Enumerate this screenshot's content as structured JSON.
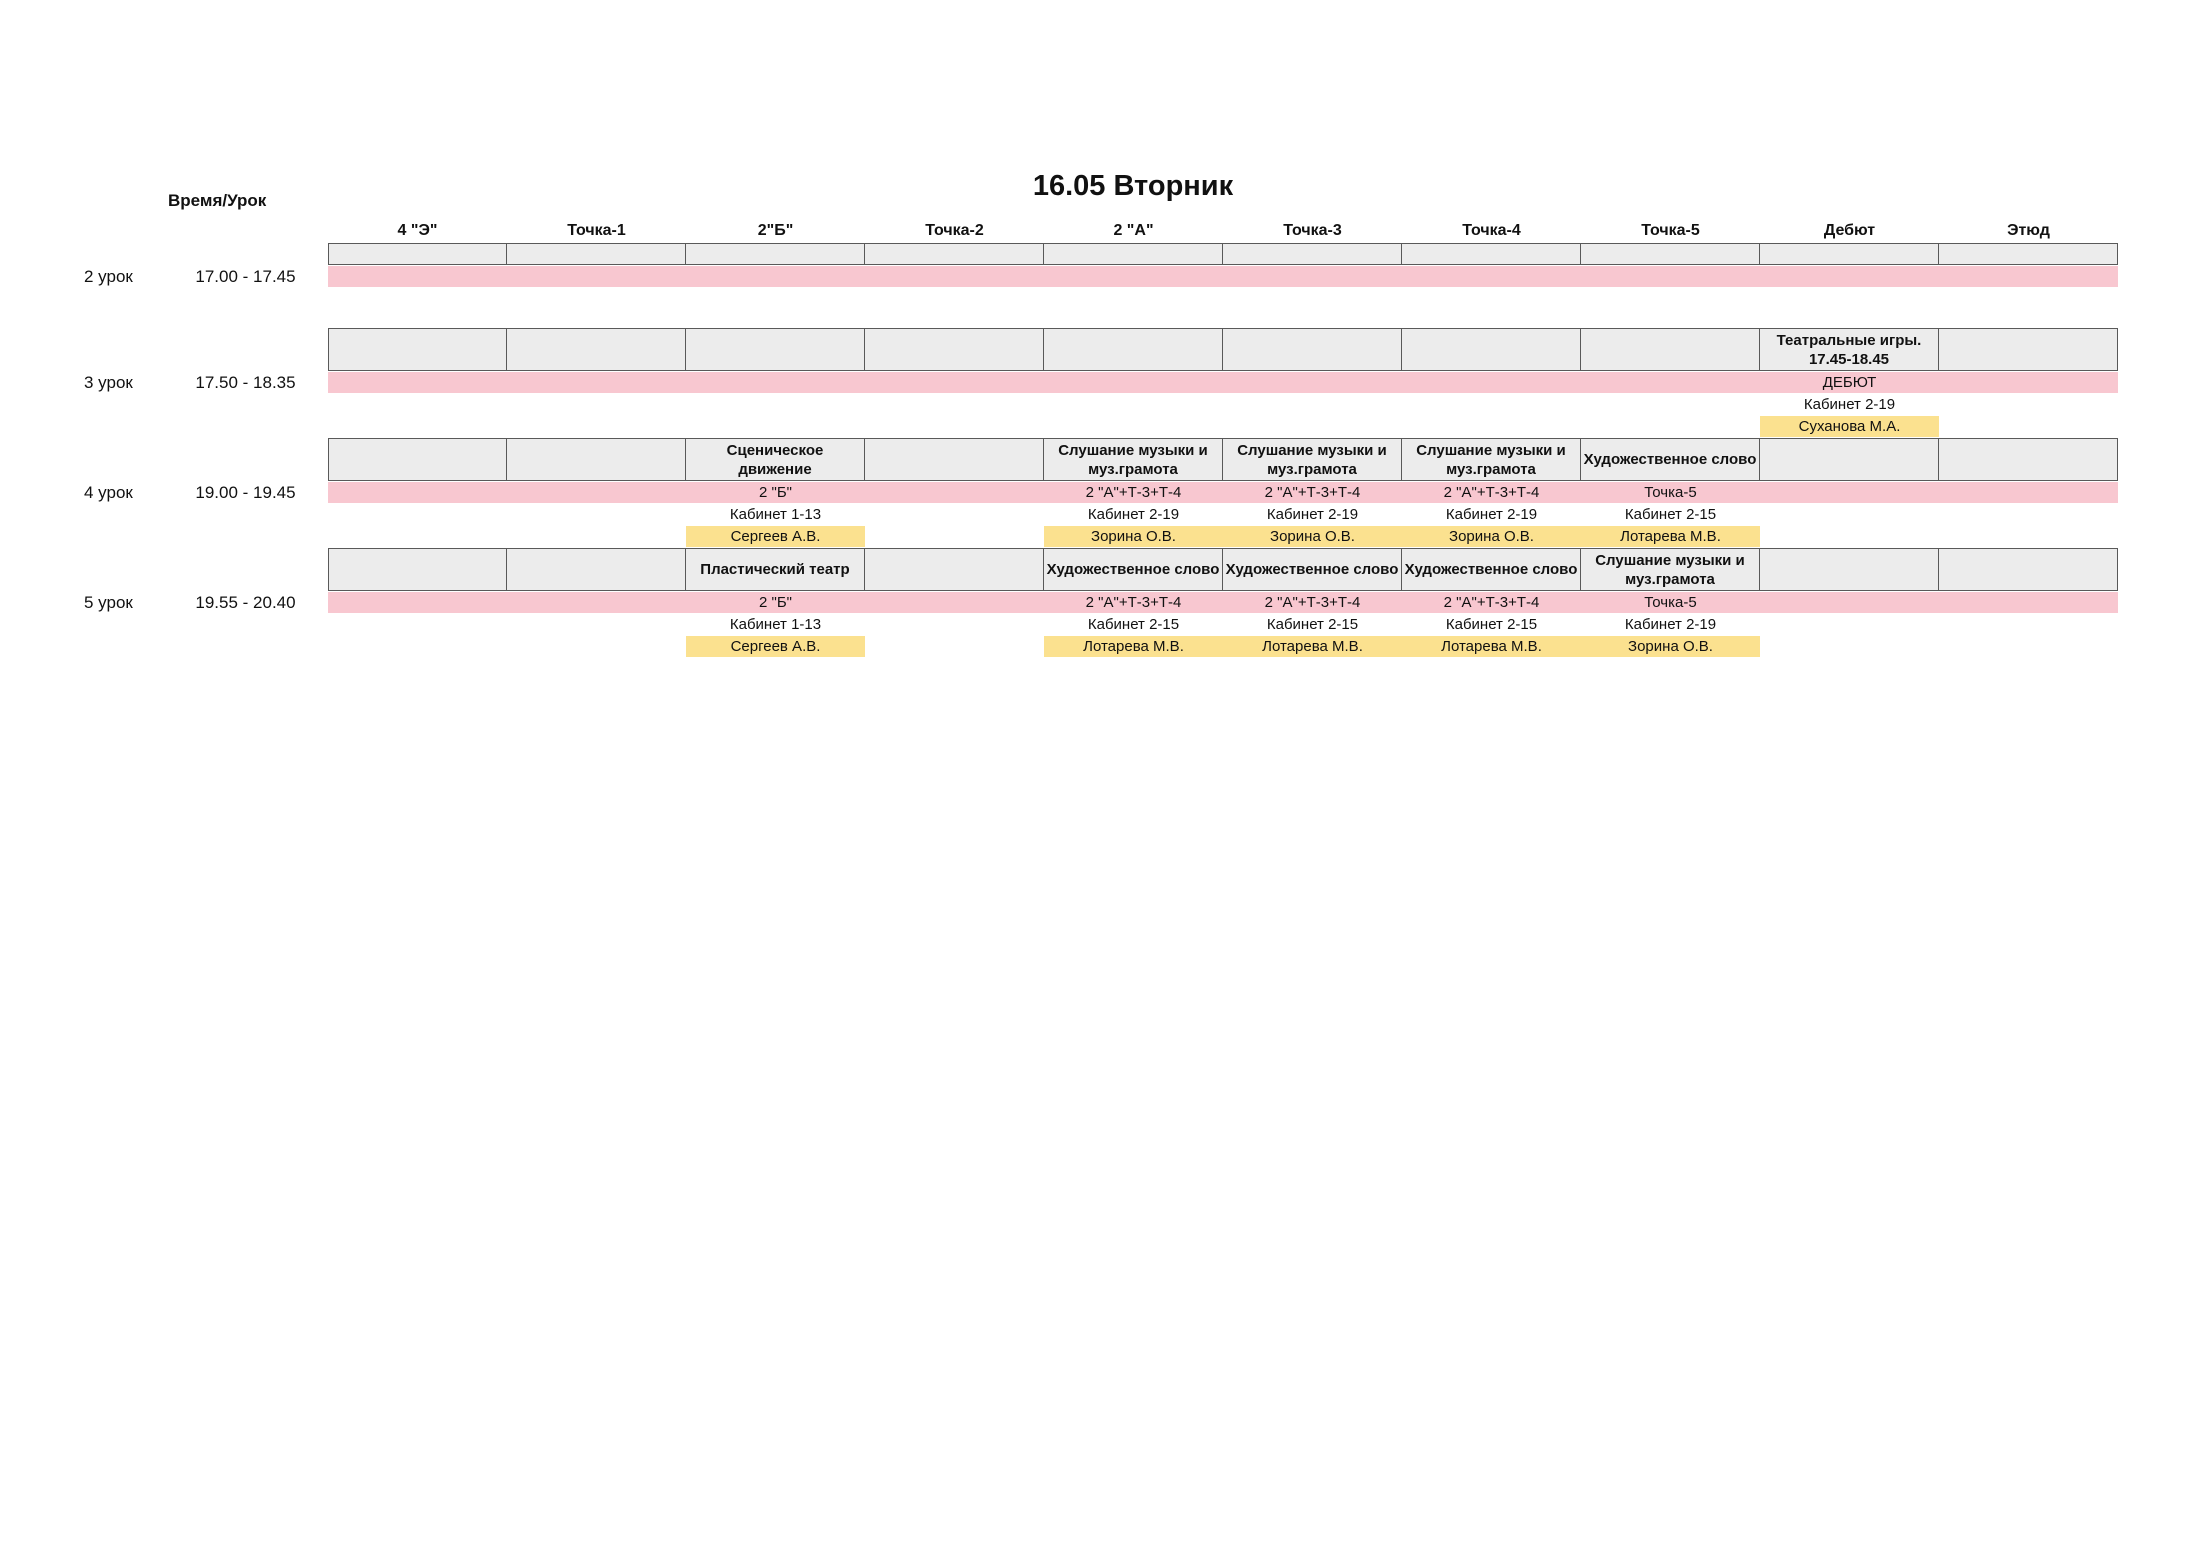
{
  "page": {
    "title": "16.05 Вторник",
    "corner_label": "Время/Урок"
  },
  "columns": [
    "4 \"Э\"",
    "Точка-1",
    "2\"Б\"",
    "Точка-2",
    "2 \"А\"",
    "Точка-3",
    "Точка-4",
    "Точка-5",
    "Дебют",
    "Этюд"
  ],
  "colors": {
    "lesson_band": "#f8c7d0",
    "teacher_band": "#fbe18f",
    "header_cell": "#ececec",
    "cell_border": "#595959"
  },
  "blocks": [
    {
      "lesson": "2 урок",
      "time": "17.00 - 17.45",
      "subjects": [
        "",
        "",
        "",
        "",
        "",
        "",
        "",
        "",
        "",
        ""
      ],
      "groups": [
        "",
        "",
        "",
        "",
        "",
        "",
        "",
        "",
        "",
        ""
      ],
      "rooms": [
        "",
        "",
        "",
        "",
        "",
        "",
        "",
        "",
        "",
        ""
      ],
      "teachers": [
        "",
        "",
        "",
        "",
        "",
        "",
        "",
        "",
        "",
        ""
      ]
    },
    {
      "lesson": "3 урок",
      "time": "17.50 - 18.35",
      "subjects": [
        "",
        "",
        "",
        "",
        "",
        "",
        "",
        "",
        "Театральные игры.\n17.45-18.45",
        ""
      ],
      "groups": [
        "",
        "",
        "",
        "",
        "",
        "",
        "",
        "",
        "ДЕБЮТ",
        ""
      ],
      "rooms": [
        "",
        "",
        "",
        "",
        "",
        "",
        "",
        "",
        "Кабинет 2-19",
        ""
      ],
      "teachers": [
        "",
        "",
        "",
        "",
        "",
        "",
        "",
        "",
        "Суханова М.А.",
        ""
      ]
    },
    {
      "lesson": "4 урок",
      "time": "19.00 - 19.45",
      "subjects": [
        "",
        "",
        "Сценическое\nдвижение",
        "",
        "Слушание музыки и\nмуз.грамота",
        "Слушание музыки и\nмуз.грамота",
        "Слушание музыки и\nмуз.грамота",
        "Художественное слово",
        "",
        ""
      ],
      "groups": [
        "",
        "",
        "2 \"Б\"",
        "",
        "2 \"А\"+Т-3+Т-4",
        "2 \"А\"+Т-3+Т-4",
        "2 \"А\"+Т-3+Т-4",
        "Точка-5",
        "",
        ""
      ],
      "rooms": [
        "",
        "",
        "Кабинет 1-13",
        "",
        "Кабинет 2-19",
        "Кабинет 2-19",
        "Кабинет 2-19",
        "Кабинет 2-15",
        "",
        ""
      ],
      "teachers": [
        "",
        "",
        "Сергеев А.В.",
        "",
        "Зорина О.В.",
        "Зорина О.В.",
        "Зорина О.В.",
        "Лотарева М.В.",
        "",
        ""
      ]
    },
    {
      "lesson": "5 урок",
      "time": "19.55 - 20.40",
      "subjects": [
        "",
        "",
        "Пластический театр",
        "",
        "Художественное слово",
        "Художественное слово",
        "Художественное слово",
        "Слушание музыки и\nмуз.грамота",
        "",
        ""
      ],
      "groups": [
        "",
        "",
        "2 \"Б\"",
        "",
        "2 \"А\"+Т-3+Т-4",
        "2 \"А\"+Т-3+Т-4",
        "2 \"А\"+Т-3+Т-4",
        "Точка-5",
        "",
        ""
      ],
      "rooms": [
        "",
        "",
        "Кабинет 1-13",
        "",
        "Кабинет 2-15",
        "Кабинет 2-15",
        "Кабинет 2-15",
        "Кабинет 2-19",
        "",
        ""
      ],
      "teachers": [
        "",
        "",
        "Сергеев А.В.",
        "",
        "Лотарева М.В.",
        "Лотарева М.В.",
        "Лотарева М.В.",
        "Зорина О.В.",
        "",
        ""
      ]
    }
  ]
}
